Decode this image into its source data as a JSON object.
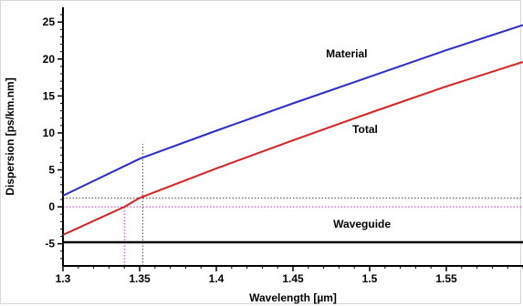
{
  "chart_data": {
    "type": "line",
    "xlabel": "Wavelength [µm]",
    "ylabel": "Dispersion [ps/km.nm]",
    "xlim": [
      1.3,
      1.6
    ],
    "ylim": [
      -8,
      27
    ],
    "x_ticks": [
      "1.3",
      "1.35",
      "1.4",
      "1.45",
      "1.5",
      "1.55"
    ],
    "x_tick_values": [
      1.3,
      1.35,
      1.4,
      1.45,
      1.5,
      1.55
    ],
    "y_ticks": [
      "25",
      "20",
      "15",
      "10",
      "5",
      "0",
      "-5"
    ],
    "y_tick_values": [
      25,
      20,
      15,
      10,
      5,
      0,
      -5
    ],
    "series": [
      {
        "name": "Material",
        "color": "#2b2bd6",
        "x": [
          1.3,
          1.35,
          1.4,
          1.45,
          1.5,
          1.55,
          1.6
        ],
        "y": [
          1.5,
          6.5,
          10.3,
          14.0,
          17.6,
          21.2,
          24.6
        ]
      },
      {
        "name": "Total",
        "color": "#e02020",
        "x": [
          1.3,
          1.34,
          1.35,
          1.4,
          1.45,
          1.5,
          1.55,
          1.6
        ],
        "y": [
          -3.8,
          0.0,
          1.2,
          5.2,
          9.0,
          12.7,
          16.3,
          19.6
        ]
      },
      {
        "name": "Waveguide",
        "color": "#000000",
        "x": [
          1.3,
          1.4,
          1.5,
          1.6
        ],
        "y": [
          -4.8,
          -4.8,
          -4.8,
          -4.8
        ]
      }
    ],
    "reference_lines": [
      {
        "axis": "y",
        "value": 0,
        "color": "#cc33cc",
        "style": "dotted"
      },
      {
        "axis": "y",
        "value": 1.2,
        "color": "#444444",
        "style": "dotted"
      },
      {
        "axis": "x",
        "value": 1.34,
        "color": "#cc33cc",
        "style": "dotted",
        "y_range": [
          -8,
          0
        ]
      },
      {
        "axis": "x",
        "value": 1.352,
        "color": "#444444",
        "style": "dotted",
        "y_range": [
          -8,
          8.5
        ]
      }
    ],
    "grid": false,
    "legend": "none"
  }
}
